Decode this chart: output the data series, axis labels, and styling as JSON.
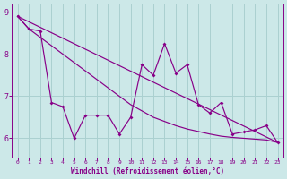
{
  "xlabel": "Windchill (Refroidissement éolien,°C)",
  "bg_color": "#cce8e8",
  "grid_color": "#aad0d0",
  "line_color": "#880088",
  "x_values": [
    0,
    1,
    2,
    3,
    4,
    5,
    6,
    7,
    8,
    9,
    10,
    11,
    12,
    13,
    14,
    15,
    16,
    17,
    18,
    19,
    20,
    21,
    22,
    23
  ],
  "series_jagged": [
    8.9,
    8.6,
    8.55,
    6.85,
    6.75,
    6.0,
    6.55,
    6.55,
    6.55,
    6.1,
    6.5,
    7.75,
    7.5,
    8.25,
    7.55,
    7.75,
    6.8,
    6.6,
    6.85,
    6.1,
    6.15,
    6.2,
    6.3,
    5.9
  ],
  "series_smooth": [
    8.9,
    8.6,
    8.4,
    8.2,
    8.0,
    7.8,
    7.6,
    7.4,
    7.2,
    7.0,
    6.8,
    6.65,
    6.5,
    6.4,
    6.3,
    6.22,
    6.16,
    6.1,
    6.05,
    6.02,
    6.0,
    5.98,
    5.96,
    5.9
  ],
  "trend_x": [
    0,
    23
  ],
  "trend_y": [
    8.9,
    5.9
  ],
  "ylim": [
    5.55,
    9.2
  ],
  "xlim": [
    -0.5,
    23.5
  ],
  "yticks": [
    6,
    7,
    8,
    9
  ],
  "xticks": [
    0,
    1,
    2,
    3,
    4,
    5,
    6,
    7,
    8,
    9,
    10,
    11,
    12,
    13,
    14,
    15,
    16,
    17,
    18,
    19,
    20,
    21,
    22,
    23
  ],
  "tick_fontsize_x": 4.5,
  "tick_fontsize_y": 6.0,
  "xlabel_fontsize": 5.5
}
